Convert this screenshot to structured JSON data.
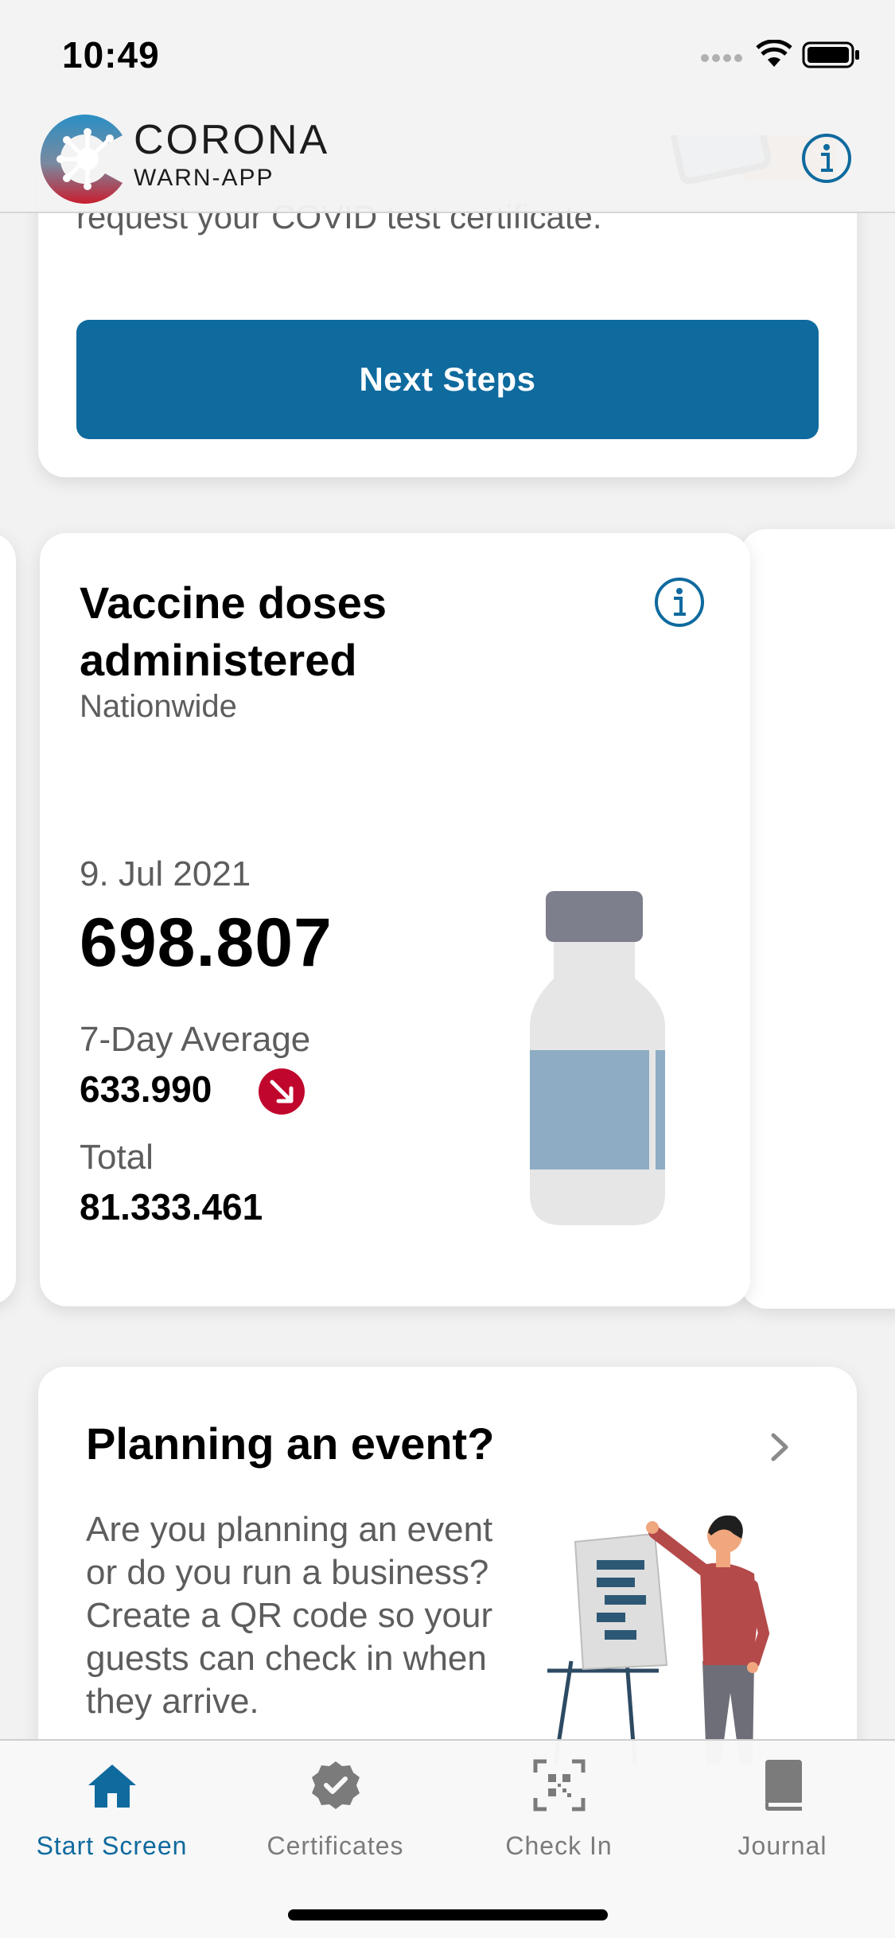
{
  "status_bar": {
    "time": "10:49"
  },
  "header": {
    "brand_title": "CORONA",
    "brand_subtitle": "WARN-APP"
  },
  "certificate_card": {
    "text": "request your COVID test certificate.",
    "button_label": "Next Steps"
  },
  "vaccine_card": {
    "title": "Vaccine doses administered",
    "subtitle": "Nationwide",
    "date": "9. Jul 2021",
    "value": "698.807",
    "avg_label": "7-Day Average",
    "avg_value": "633.990",
    "avg_trend": "down",
    "total_label": "Total",
    "total_value": "81.333.461"
  },
  "event_card": {
    "title": "Planning an event?",
    "text": "Are you planning an event or do you run a business? Create a QR code so your guests can check in when they arrive."
  },
  "tabs": [
    {
      "label": "Start Screen",
      "icon": "home-icon",
      "active": true
    },
    {
      "label": "Certificates",
      "icon": "certificate-icon",
      "active": false
    },
    {
      "label": "Check In",
      "icon": "qr-scan-icon",
      "active": false
    },
    {
      "label": "Journal",
      "icon": "journal-icon",
      "active": false
    }
  ],
  "colors": {
    "accent": "#0f6a9e",
    "trend_down": "#c0062d",
    "tab_inactive": "#7b7b7b"
  }
}
